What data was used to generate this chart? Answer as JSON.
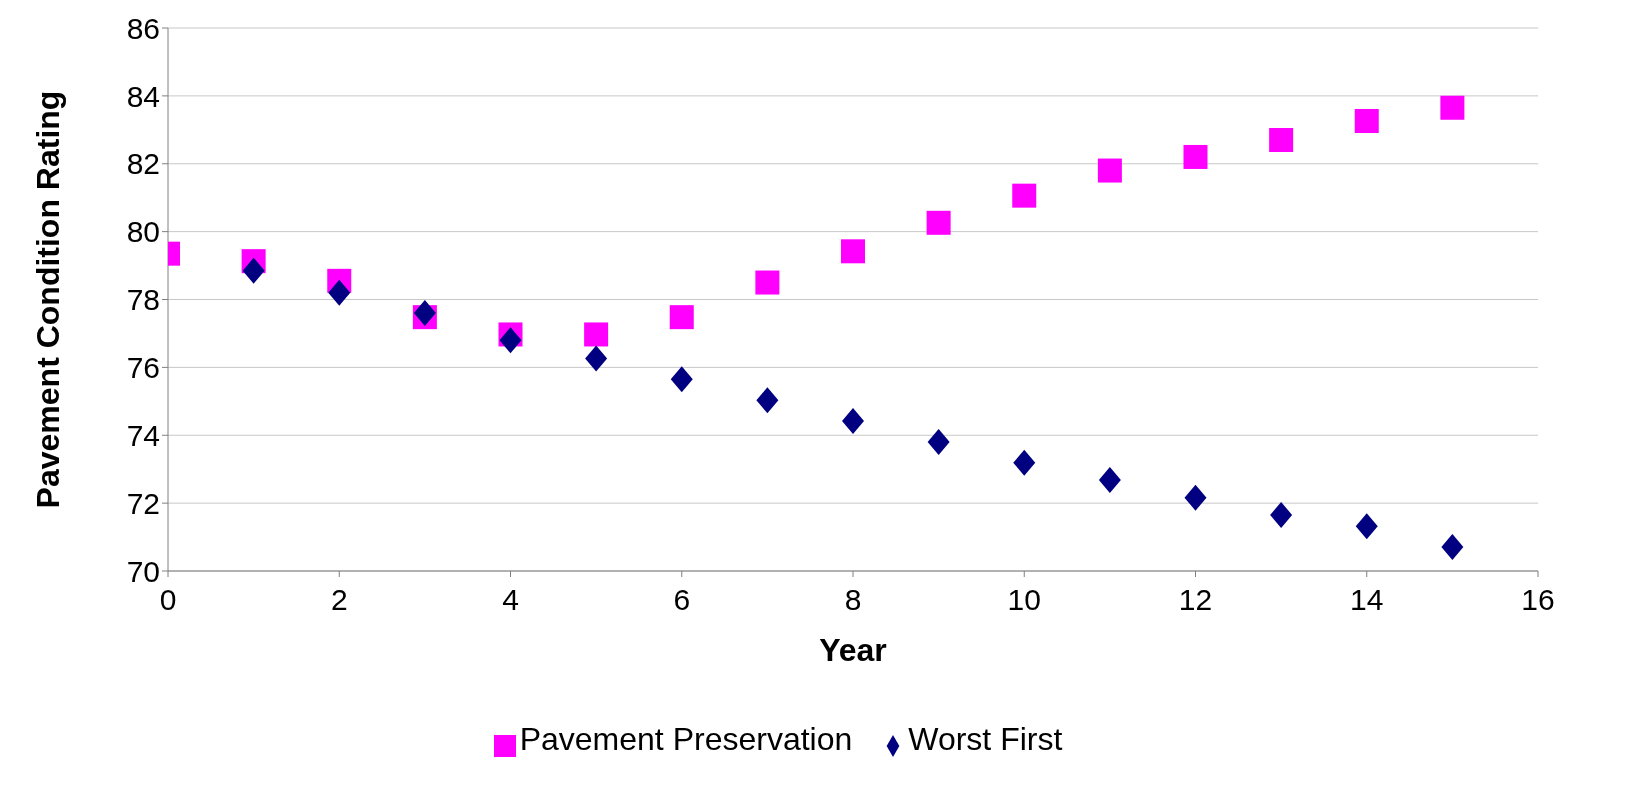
{
  "chart_data": {
    "type": "scatter",
    "xlabel": "Year",
    "ylabel": "Pavement Condition Rating",
    "x": [
      0,
      1,
      2,
      3,
      4,
      5,
      6,
      7,
      8,
      9,
      10,
      11,
      12,
      13,
      14,
      15
    ],
    "series": [
      {
        "name": "Worst First",
        "color": "#000080",
        "marker": "diamond",
        "values": [
          null,
          78.85,
          78.2,
          77.6,
          76.8,
          76.26,
          75.65,
          75.03,
          74.42,
          73.8,
          73.19,
          72.68,
          72.16,
          71.65,
          71.32,
          70.71
        ]
      },
      {
        "name": "Pavement Preservation",
        "color": "#ff00ff",
        "marker": "square",
        "values": [
          79.35,
          79.13,
          78.55,
          77.48,
          76.97,
          76.97,
          77.48,
          78.5,
          79.42,
          80.26,
          81.06,
          81.8,
          82.2,
          82.7,
          83.26,
          83.65
        ]
      }
    ],
    "xlim": [
      0,
      16
    ],
    "xticks": [
      0,
      2,
      4,
      6,
      8,
      10,
      12,
      14,
      16
    ],
    "ylim": [
      70,
      86
    ],
    "yticks": [
      70,
      72,
      74,
      76,
      78,
      80,
      82,
      84,
      86
    ],
    "grid": "y",
    "legend": "bottom"
  }
}
